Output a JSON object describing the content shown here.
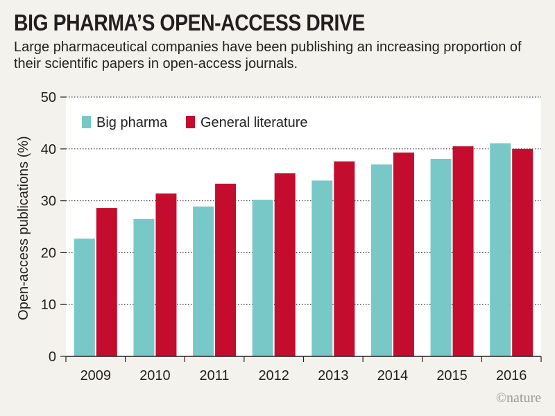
{
  "header": {
    "title": "BIG PHARMA’S OPEN-ACCESS DRIVE",
    "subtitle": "Large pharmaceutical companies have been publishing an increasing proportion of their scientific papers in open-access journals."
  },
  "footer": {
    "credit": "©nature"
  },
  "colors": {
    "big_pharma": "#79c8c8",
    "general_literature": "#c40d2e",
    "plot_bg": "#ffffff",
    "page_bg": "#f4f2ec"
  },
  "chart_data": {
    "type": "bar",
    "categories": [
      "2009",
      "2010",
      "2011",
      "2012",
      "2013",
      "2014",
      "2015",
      "2016"
    ],
    "series": [
      {
        "name": "Big pharma",
        "values": [
          22.7,
          26.5,
          28.9,
          30.2,
          33.9,
          37.0,
          38.1,
          41.1
        ]
      },
      {
        "name": "General literature",
        "values": [
          28.6,
          31.4,
          33.3,
          35.3,
          37.6,
          39.3,
          40.5,
          40.0
        ]
      }
    ],
    "xlabel": "",
    "ylabel": "Open-access publications (%)",
    "ylim": [
      0,
      50
    ],
    "yticks": [
      0,
      10,
      20,
      30,
      40,
      50
    ],
    "grid": true,
    "legend_position": "top-left"
  }
}
